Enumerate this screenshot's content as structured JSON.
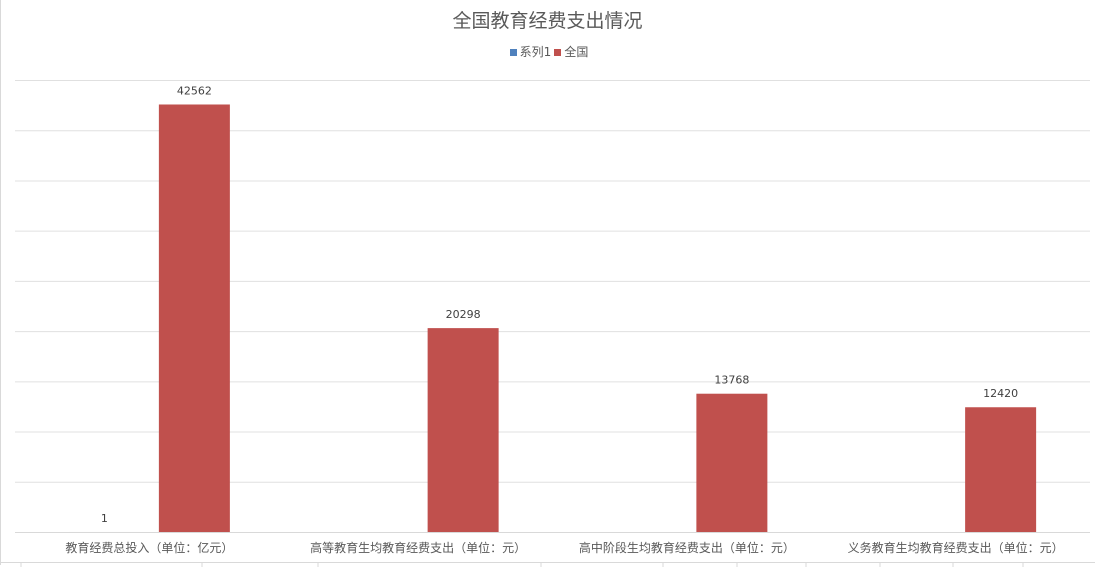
{
  "chart_data": {
    "type": "bar",
    "title": "全国教育经费支出情况",
    "categories": [
      "教育经费总投入（单位：亿元）",
      "高等教育生均教育经费支出（单位：元）",
      "高中阶段生均教育经费支出（单位：元）",
      "义务教育生均教育经费支出（单位：元）"
    ],
    "series": [
      {
        "name": "系列1",
        "color": "#4f81bd",
        "values": [
          1,
          null,
          null,
          null
        ],
        "labels": [
          "1",
          "",
          "",
          ""
        ]
      },
      {
        "name": "全国",
        "color": "#c0504d",
        "values": [
          42562,
          20298,
          13768,
          12420
        ],
        "labels": [
          "42562",
          "20298",
          "13768",
          "12420"
        ]
      }
    ],
    "ylim": [
      0,
      45000
    ],
    "ystep": 5000,
    "grid": true,
    "y_tick_labels_visible": false,
    "legend": "top"
  }
}
